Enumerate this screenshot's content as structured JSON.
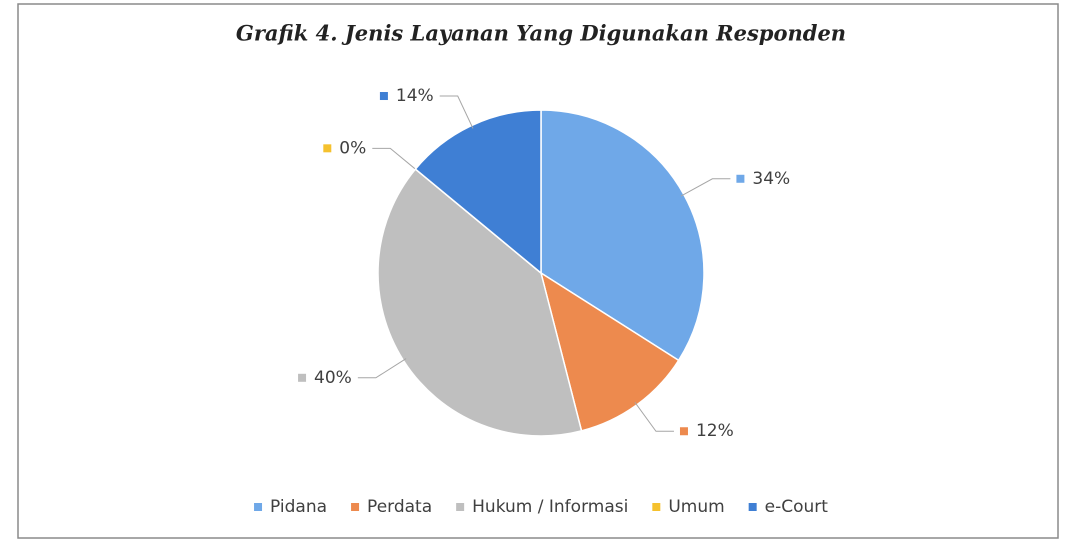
{
  "chart_data": {
    "type": "pie",
    "title": "Grafik 4. Jenis Layanan Yang Digunakan Responden",
    "categories": [
      "Pidana",
      "Perdata",
      "Hukum / Informasi",
      "Umum",
      "e-Court"
    ],
    "values": [
      34,
      12,
      40,
      0,
      14
    ],
    "value_labels": [
      "34%",
      "12%",
      "40%",
      "0%",
      "14%"
    ],
    "colors": [
      "#6fa8e8",
      "#ed8a4e",
      "#bfbfbf",
      "#f5c12e",
      "#3f7fd4"
    ],
    "legend": "bottom"
  }
}
